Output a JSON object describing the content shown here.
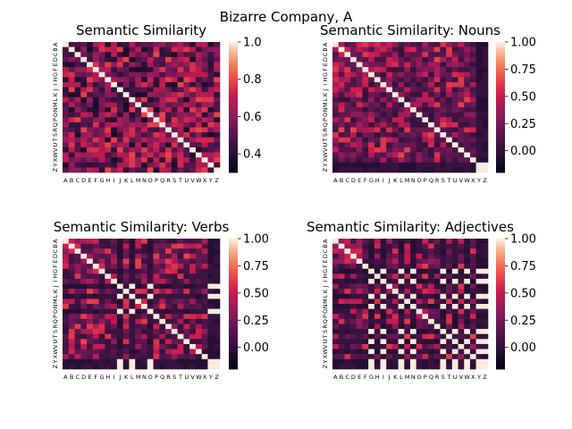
{
  "figure": {
    "title": "Bizarre Company, A"
  },
  "chart_data": [
    {
      "type": "heatmap",
      "title": "Semantic Similarity",
      "labels": [
        "A",
        "B",
        "C",
        "D",
        "E",
        "F",
        "G",
        "H",
        "I",
        "J",
        "K",
        "L",
        "M",
        "N",
        "O",
        "P",
        "Q",
        "R",
        "S",
        "T",
        "U",
        "V",
        "W",
        "X",
        "Y",
        "Z"
      ],
      "colorbar": {
        "min": 0.3,
        "max": 1.0,
        "ticks": [
          0.4,
          0.6,
          0.8,
          1.0
        ],
        "tick_labels": [
          "0.4",
          "0.6",
          "0.8",
          "1.0"
        ]
      },
      "colormap": "rocket",
      "pattern": "mixed",
      "seed": 11
    },
    {
      "type": "heatmap",
      "title": "Semantic Similarity: Nouns",
      "labels": [
        "A",
        "B",
        "C",
        "D",
        "E",
        "F",
        "G",
        "H",
        "I",
        "J",
        "K",
        "L",
        "M",
        "N",
        "O",
        "P",
        "Q",
        "R",
        "S",
        "T",
        "U",
        "V",
        "W",
        "X",
        "Y",
        "Z"
      ],
      "colorbar": {
        "min": -0.2,
        "max": 1.0,
        "ticks": [
          0.0,
          0.25,
          0.5,
          0.75,
          1.0
        ],
        "tick_labels": [
          "0.00",
          "0.25",
          "0.50",
          "0.75",
          "1.00"
        ]
      },
      "colormap": "rocket",
      "pattern": "nouns",
      "seed": 23
    },
    {
      "type": "heatmap",
      "title": "Semantic Similarity: Verbs",
      "labels": [
        "A",
        "B",
        "C",
        "D",
        "E",
        "F",
        "G",
        "H",
        "I",
        "J",
        "K",
        "L",
        "M",
        "N",
        "O",
        "P",
        "Q",
        "R",
        "S",
        "T",
        "U",
        "V",
        "W",
        "X",
        "Y",
        "Z"
      ],
      "colorbar": {
        "min": -0.2,
        "max": 1.0,
        "ticks": [
          0.0,
          0.25,
          0.5,
          0.75,
          1.0
        ],
        "tick_labels": [
          "0.00",
          "0.25",
          "0.50",
          "0.75",
          "1.00"
        ]
      },
      "colormap": "rocket",
      "pattern": "verbs",
      "seed": 37
    },
    {
      "type": "heatmap",
      "title": "Semantic Similarity: Adjectives",
      "labels": [
        "A",
        "B",
        "C",
        "D",
        "E",
        "F",
        "G",
        "H",
        "I",
        "J",
        "K",
        "L",
        "M",
        "N",
        "O",
        "P",
        "Q",
        "R",
        "S",
        "T",
        "U",
        "V",
        "W",
        "X",
        "Y",
        "Z"
      ],
      "colorbar": {
        "min": -0.2,
        "max": 1.0,
        "ticks": [
          0.0,
          0.25,
          0.5,
          0.75,
          1.0
        ],
        "tick_labels": [
          "0.00",
          "0.25",
          "0.50",
          "0.75",
          "1.00"
        ]
      },
      "colormap": "rocket",
      "pattern": "adjectives",
      "seed": 53
    }
  ]
}
